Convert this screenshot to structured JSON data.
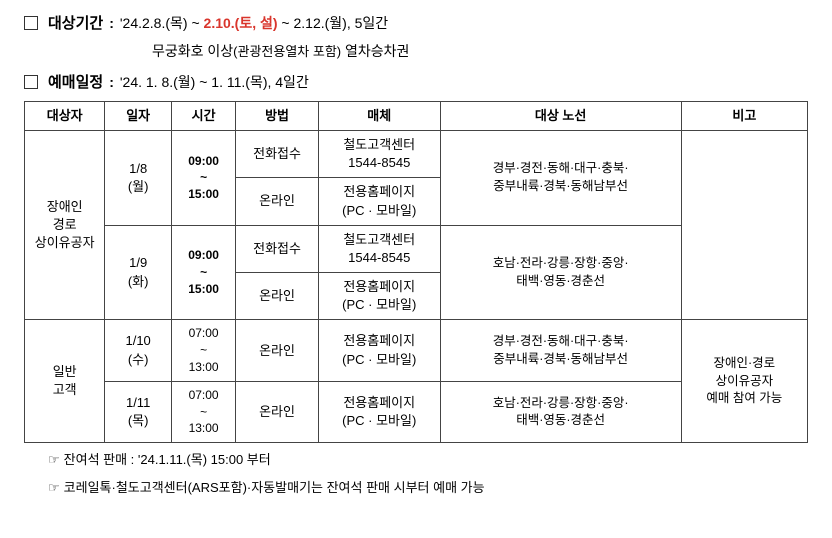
{
  "header1": {
    "label": "대상기간",
    "pre": "'24.2.8.(목) ~ ",
    "highlight": "2.10.(토, 설)",
    "post": " ~ 2.12.(월), 5일간",
    "sub": "무궁화호 이상",
    "sub_small": "(관광전용열차 포함)",
    "sub_post": " 열차승차권"
  },
  "header2": {
    "label": "예매일정",
    "text": "'24. 1. 8.(월)  ~  1. 11.(목), 4일간"
  },
  "columns": {
    "c1": "대상자",
    "c2": "일자",
    "c3": "시간",
    "c4": "방법",
    "c5": "매체",
    "c6": "대상 노선",
    "c7": "비고"
  },
  "group1": {
    "label": "장애인\n경로\n상이유공자",
    "r1": {
      "date": "1/8\n(월)",
      "time": "09:00\n~\n15:00",
      "method_a": "전화접수",
      "media_a": "철도고객센터\n1544-8545",
      "method_b": "온라인",
      "media_b": "전용홈페이지\n(PC · 모바일)",
      "route": "경부·경전·동해·대구·충북·\n중부내륙·경북·동해남부선"
    },
    "r2": {
      "date": "1/9\n(화)",
      "time": "09:00\n~\n15:00",
      "method_a": "전화접수",
      "media_a": "철도고객센터\n1544-8545",
      "method_b": "온라인",
      "media_b": "전용홈페이지\n(PC · 모바일)",
      "route": "호남·전라·강릉·장항·중앙·\n태백·영동·경춘선"
    }
  },
  "group2": {
    "label": "일반\n고객",
    "r1": {
      "date": "1/10\n(수)",
      "time": "07:00\n~\n13:00",
      "method": "온라인",
      "media": "전용홈페이지\n(PC · 모바일)",
      "route": "경부·경전·동해·대구·충북·\n중부내륙·경북·동해남부선"
    },
    "r2": {
      "date": "1/11\n(목)",
      "time": "07:00\n~\n13:00",
      "method": "온라인",
      "media": "전용홈페이지\n(PC · 모바일)",
      "route": "호남·전라·강릉·장항·중앙·\n태백·영동·경춘선"
    },
    "note": "장애인·경로\n상이유공자\n예매 참여 가능"
  },
  "footnote1": "잔여석 판매 : '24.1.11.(목) 15:00 부터",
  "footnote2": "코레일톡·철도고객센터(ARS포함)·자동발매기는 잔여석 판매 시부터 예매 가능"
}
